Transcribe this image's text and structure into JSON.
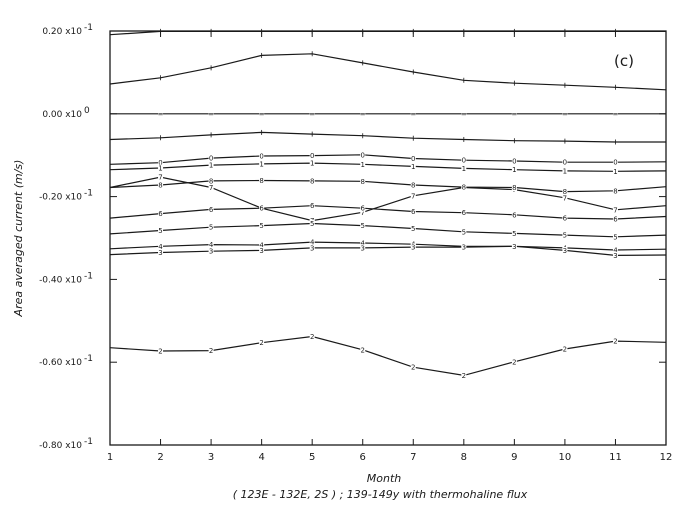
{
  "chart_data": {
    "type": "line",
    "panel_label": "(c)",
    "caption": "( 123E - 132E, 2S ) ; 139-149y with thermohaline flux",
    "xlabel": "Month",
    "ylabel": "Area averaged current (m/s)",
    "xlim": [
      1,
      12
    ],
    "ylim": [
      -0.08,
      0.02
    ],
    "x": [
      1,
      2,
      3,
      4,
      5,
      6,
      7,
      8,
      9,
      10,
      11,
      12
    ],
    "x_tick_labels": [
      "1",
      "2",
      "3",
      "4",
      "5",
      "6",
      "7",
      "8",
      "9",
      "10",
      "11",
      "12"
    ],
    "y_ticks": [
      {
        "value": 0.02,
        "label": "0.20 x10",
        "exp": "-1"
      },
      {
        "value": 0.0,
        "label": "0.00 x10",
        "exp": "0"
      },
      {
        "value": -0.02,
        "label": "-0.20 x10",
        "exp": "-1"
      },
      {
        "value": -0.04,
        "label": "-0.40 x10",
        "exp": "-1"
      },
      {
        "value": -0.06,
        "label": "-0.60 x10",
        "exp": "-1"
      },
      {
        "value": -0.08,
        "label": "-0.80 x10",
        "exp": "-1"
      }
    ],
    "series": [
      {
        "marker": "",
        "values": [
          0.0191,
          0.0199,
          0.0199,
          0.0199,
          0.0199,
          0.0199,
          0.0199,
          0.0199,
          0.0199,
          0.0199,
          0.0199,
          0.0199
        ]
      },
      {
        "marker": "",
        "values": [
          0.0072,
          0.0087,
          0.0111,
          0.0141,
          0.0145,
          0.0123,
          0.0101,
          0.0081,
          0.0074,
          0.0069,
          0.0064,
          0.0058
        ]
      },
      {
        "marker": "=",
        "values": [
          0.0,
          0.0,
          0.0,
          0.0,
          0.0,
          0.0,
          0.0,
          0.0,
          0.0,
          0.0,
          0.0,
          0.0
        ]
      },
      {
        "marker": "",
        "values": [
          -0.0062,
          -0.0058,
          -0.0051,
          -0.0045,
          -0.0049,
          -0.0053,
          -0.0059,
          -0.0062,
          -0.0065,
          -0.0066,
          -0.0068,
          -0.0068
        ]
      },
      {
        "marker": "0",
        "values": [
          -0.0122,
          -0.0118,
          -0.0107,
          -0.0102,
          -0.0101,
          -0.0099,
          -0.0108,
          -0.0112,
          -0.0114,
          -0.0117,
          -0.0117,
          -0.0116
        ]
      },
      {
        "marker": "1",
        "values": [
          -0.0135,
          -0.0131,
          -0.0124,
          -0.0121,
          -0.0119,
          -0.0122,
          -0.0127,
          -0.0132,
          -0.0135,
          -0.0138,
          -0.0139,
          -0.0138
        ]
      },
      {
        "marker": "7",
        "values": [
          -0.0178,
          -0.0153,
          -0.0178,
          -0.0228,
          -0.0258,
          -0.0238,
          -0.0198,
          -0.0178,
          -0.0183,
          -0.0203,
          -0.0232,
          -0.0222
        ]
      },
      {
        "marker": "8",
        "values": [
          -0.0178,
          -0.0172,
          -0.0162,
          -0.0161,
          -0.0162,
          -0.0163,
          -0.0172,
          -0.0177,
          -0.0178,
          -0.0188,
          -0.0186,
          -0.0176
        ]
      },
      {
        "marker": "6",
        "values": [
          -0.0252,
          -0.0241,
          -0.0231,
          -0.0228,
          -0.0222,
          -0.0228,
          -0.0236,
          -0.0239,
          -0.0244,
          -0.0252,
          -0.0254,
          -0.0248
        ]
      },
      {
        "marker": "5",
        "values": [
          -0.029,
          -0.0282,
          -0.0274,
          -0.027,
          -0.0265,
          -0.027,
          -0.0277,
          -0.0285,
          -0.0289,
          -0.0293,
          -0.0297,
          -0.0293
        ]
      },
      {
        "marker": "4",
        "values": [
          -0.0326,
          -0.032,
          -0.0316,
          -0.0317,
          -0.031,
          -0.0312,
          -0.0315,
          -0.032,
          -0.032,
          -0.0324,
          -0.0329,
          -0.0327
        ]
      },
      {
        "marker": "3",
        "values": [
          -0.034,
          -0.0335,
          -0.0332,
          -0.033,
          -0.0324,
          -0.0324,
          -0.0322,
          -0.0322,
          -0.032,
          -0.033,
          -0.0342,
          -0.0341
        ]
      },
      {
        "marker": "2",
        "values": [
          -0.0565,
          -0.0573,
          -0.0572,
          -0.0553,
          -0.0538,
          -0.057,
          -0.0612,
          -0.0632,
          -0.0599,
          -0.0568,
          -0.0549,
          -0.0552
        ]
      }
    ]
  }
}
